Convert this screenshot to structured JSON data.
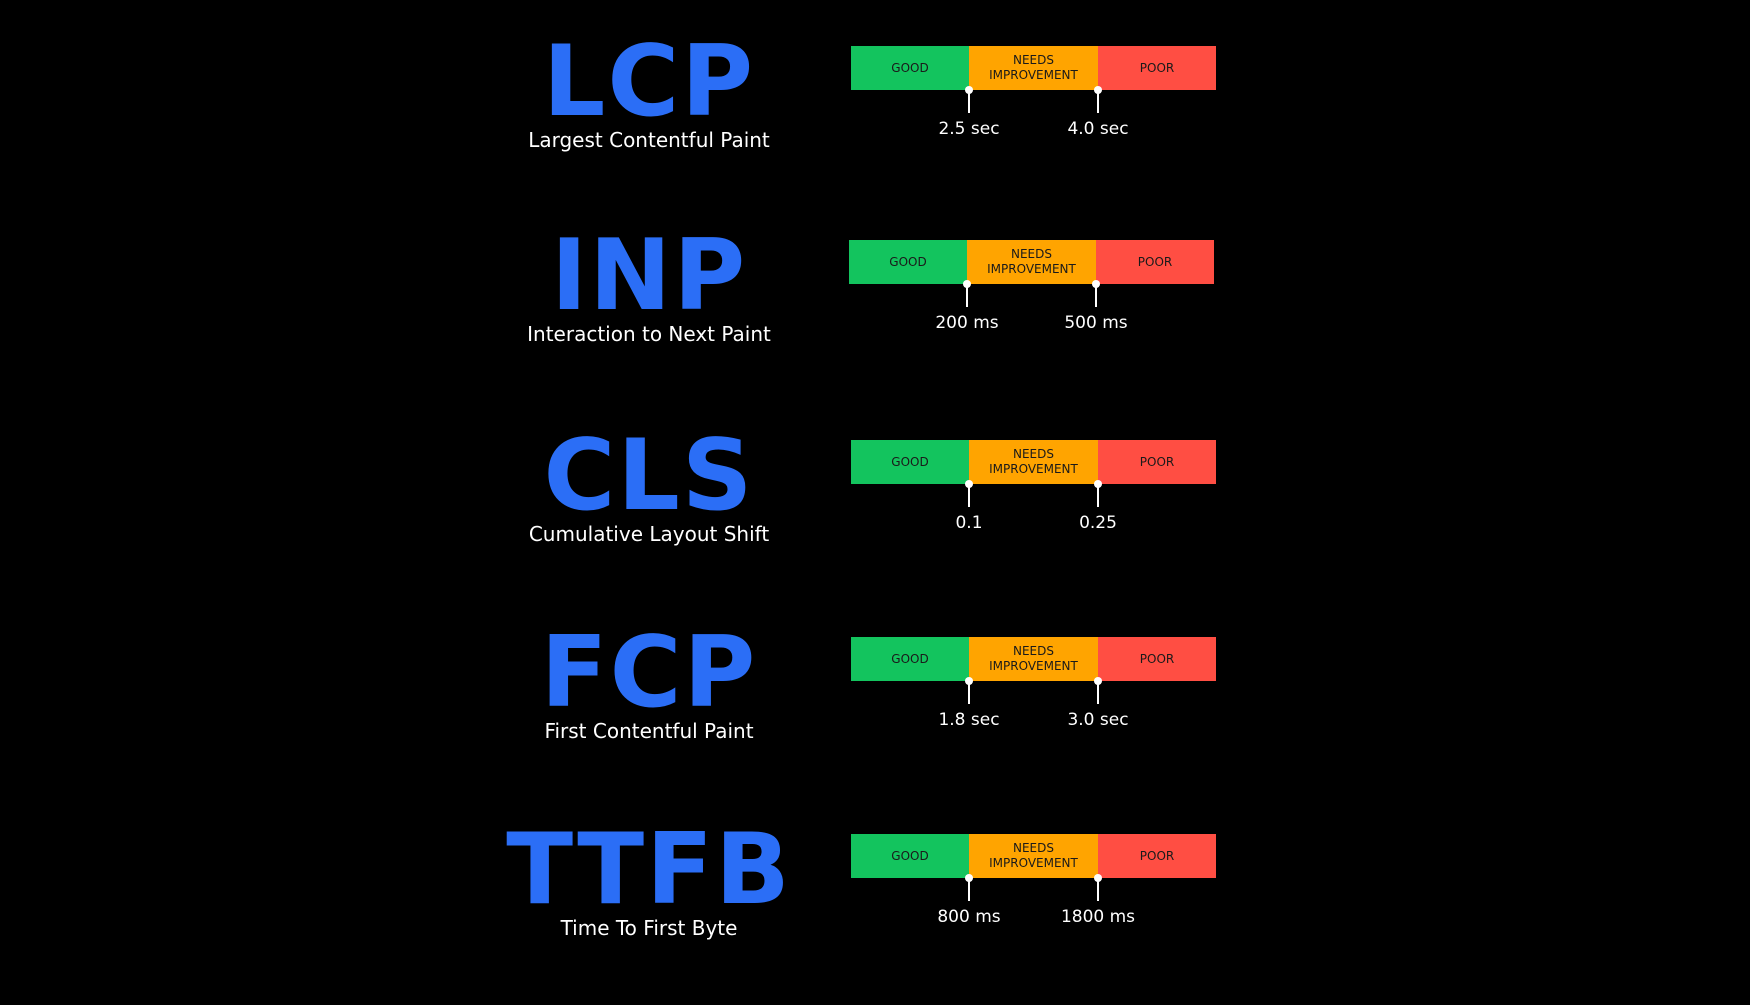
{
  "colors": {
    "background": "#000000",
    "acronym": "#2b6ef6",
    "good": "#13c45e",
    "needs_improvement": "#ffa400",
    "poor": "#ff4e43"
  },
  "segments": {
    "good": "GOOD",
    "needs_improvement_line1": "NEEDS",
    "needs_improvement_line2": "IMPROVEMENT",
    "poor": "POOR"
  },
  "metrics": [
    {
      "acronym": "LCP",
      "name": "Largest Contentful Paint",
      "threshold_good": "2.5 sec",
      "threshold_poor": "4.0 sec"
    },
    {
      "acronym": "INP",
      "name": "Interaction to Next Paint",
      "threshold_good": "200 ms",
      "threshold_poor": "500 ms"
    },
    {
      "acronym": "CLS",
      "name": "Cumulative Layout Shift",
      "threshold_good": "0.1",
      "threshold_poor": "0.25"
    },
    {
      "acronym": "FCP",
      "name": "First Contentful Paint",
      "threshold_good": "1.8 sec",
      "threshold_poor": "3.0 sec"
    },
    {
      "acronym": "TTFB",
      "name": "Time To First Byte",
      "threshold_good": "800 ms",
      "threshold_poor": "1800 ms"
    }
  ]
}
